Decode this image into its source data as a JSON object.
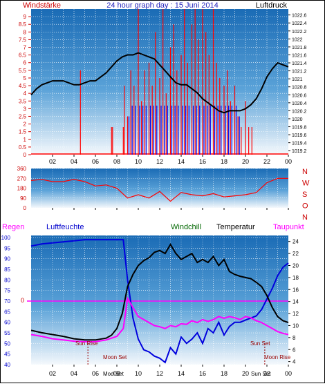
{
  "colors": {
    "panel_top": "#1a6bb5",
    "panel_bottom": "#f4f8fc",
    "grid": "#ffffff",
    "wind_red": "#ff0000",
    "wind_blue": "#0000ee",
    "pressure": "#000000",
    "humidity": "#0000dd",
    "windchill": "#006600",
    "temperature": "#000000",
    "dewpoint": "#ff00ff",
    "zero_line": "#ff00ff",
    "sun_text": "#990000"
  },
  "chart_data": [
    {
      "type": "line",
      "panel": "wind_pressure",
      "title": "24 hour graph day : 15 Juni 2014",
      "left_label": "Windstärke",
      "right_label": "Luftdruck",
      "x_ticks": [
        "02",
        "04",
        "06",
        "08",
        "10",
        "12",
        "14",
        "16",
        "18",
        "20",
        "22",
        "00"
      ],
      "y_left_ticks": [
        "0",
        "0.5",
        "1",
        "1.5",
        "2",
        "2.5",
        "3",
        "3.5",
        "4",
        "4.5",
        "5",
        "5.5",
        "6",
        "6.5",
        "7",
        "7.5",
        "8",
        "8.5",
        "9"
      ],
      "y_right_ticks": [
        "1019.2",
        "1019.4",
        "1019.6",
        "1019.8",
        "1020",
        "1020.2",
        "1020.4",
        "1020.6",
        "1020.8",
        "1021",
        "1021.2",
        "1021.4",
        "1021.6",
        "1021.8",
        "1022",
        "1022.2",
        "1022.4",
        "1022.6"
      ],
      "ylim_left": [
        0,
        9.5
      ],
      "ylim_right": [
        1019.1,
        1022.75
      ],
      "xlim": [
        0,
        24
      ],
      "grid": true,
      "series": [
        {
          "name": "Luftdruck",
          "x": [
            0,
            0.5,
            1,
            1.5,
            2,
            2.5,
            3,
            3.5,
            4,
            4.5,
            5,
            5.5,
            6,
            6.5,
            7,
            7.5,
            8,
            8.5,
            9,
            9.5,
            10,
            10.5,
            11,
            11.5,
            12,
            12.5,
            13,
            13.5,
            14,
            14.5,
            15,
            15.5,
            16,
            16.5,
            17,
            17.5,
            18,
            18.5,
            19,
            19.5,
            20,
            20.5,
            21,
            21.5,
            22,
            22.5,
            23,
            23.5,
            24
          ],
          "values": [
            1020.6,
            1020.75,
            1020.85,
            1020.9,
            1020.95,
            1020.95,
            1020.95,
            1020.9,
            1020.85,
            1020.85,
            1020.9,
            1020.95,
            1020.95,
            1021.05,
            1021.15,
            1021.3,
            1021.45,
            1021.55,
            1021.6,
            1021.6,
            1021.65,
            1021.6,
            1021.55,
            1021.5,
            1021.35,
            1021.2,
            1021.05,
            1020.9,
            1020.85,
            1020.85,
            1020.75,
            1020.65,
            1020.5,
            1020.4,
            1020.3,
            1020.2,
            1020.15,
            1020.2,
            1020.2,
            1020.2,
            1020.25,
            1020.35,
            1020.5,
            1020.75,
            1021.05,
            1021.25,
            1021.4,
            1021.35,
            1021.3
          ]
        },
        {
          "name": "Windstärke",
          "x": [
            4.6,
            4.7,
            7.5,
            7.6,
            8.6,
            8.7,
            9.0,
            9.3,
            9.6,
            10.0,
            10.3,
            10.6,
            11.0,
            11.3,
            11.6,
            12.0,
            12.3,
            12.6,
            13.0,
            13.3,
            13.6,
            14.0,
            14.3,
            14.6,
            15.0,
            15.3,
            15.6,
            16.0,
            16.3,
            16.6,
            17.0,
            17.3,
            17.6,
            18.0,
            18.3,
            18.6,
            19.0,
            19.3,
            19.6,
            20.0,
            20.3,
            20.6
          ],
          "values": [
            5.5,
            0,
            1.8,
            1.8,
            1.8,
            4.5,
            2.5,
            5.5,
            4.5,
            9.5,
            3.5,
            5.5,
            6.0,
            4.5,
            8.0,
            5.0,
            9.5,
            4.0,
            7.0,
            8.5,
            5.5,
            6.5,
            9.5,
            6.0,
            8.5,
            9.5,
            7.5,
            9.5,
            8.0,
            6.5,
            9.5,
            6.0,
            5.0,
            4.5,
            5.5,
            3.5,
            4.5,
            2.5,
            1.8,
            3.5,
            1.8,
            1.8
          ]
        }
      ]
    },
    {
      "type": "line",
      "panel": "wind_direction",
      "x_ticks": [
        "02",
        "04",
        "06",
        "08",
        "10",
        "12",
        "14",
        "16",
        "18",
        "20",
        "22",
        "00"
      ],
      "y_ticks": [
        "0",
        "90",
        "180",
        "270",
        "360"
      ],
      "right_labels": [
        "N",
        "W",
        "S",
        "O",
        "N"
      ],
      "ylim": [
        0,
        360
      ],
      "xlim": [
        0,
        24
      ],
      "grid": true,
      "series": [
        {
          "name": "Windrichtung",
          "x": [
            0,
            1,
            2,
            3,
            4,
            5,
            6,
            7,
            8,
            9,
            10,
            11,
            12,
            13,
            14,
            15,
            16,
            17,
            18,
            19,
            20,
            21,
            22,
            23,
            24
          ],
          "values": [
            250,
            260,
            240,
            240,
            260,
            240,
            200,
            210,
            180,
            90,
            120,
            90,
            150,
            60,
            140,
            120,
            110,
            130,
            100,
            110,
            120,
            140,
            230,
            270,
            270
          ]
        }
      ]
    },
    {
      "type": "line",
      "panel": "temperature_humidity",
      "legend": [
        "Regen",
        "Luftfeuchte",
        "Windchill",
        "Temperatur",
        "Taupunkt"
      ],
      "x_ticks": [
        "02",
        "04",
        "06",
        "08",
        "10",
        "12",
        "14",
        "16",
        "18",
        "20",
        "22",
        "00"
      ],
      "y_left_ticks": [
        "40",
        "45",
        "50",
        "55",
        "60",
        "65",
        "70",
        "75",
        "80",
        "85",
        "90",
        "95",
        "100"
      ],
      "y_right_ticks": [
        "4",
        "6",
        "8",
        "10",
        "12",
        "14",
        "16",
        "18",
        "20",
        "22",
        "24"
      ],
      "rain_label": "0",
      "ylim_left": [
        40,
        101
      ],
      "ylim_right": [
        3.5,
        25
      ],
      "xlim": [
        0,
        24
      ],
      "grid": true,
      "annotations": [
        "Sun Rise",
        "Moon Set",
        "Sun Set",
        "Moon Rise",
        "Mod Set",
        "Sun Set"
      ],
      "series": [
        {
          "name": "Luftfeuchte",
          "x": [
            0,
            1,
            2,
            3,
            4,
            5,
            6,
            7,
            8,
            8.6,
            9,
            9.5,
            10,
            10.5,
            11,
            11.5,
            12,
            12.5,
            13,
            13.5,
            14,
            14.5,
            15,
            15.5,
            16,
            16.5,
            17,
            17.5,
            18,
            18.5,
            19,
            19.5,
            20,
            20.5,
            21,
            21.5,
            22,
            22.5,
            23,
            23.5,
            24
          ],
          "values": [
            96,
            97,
            97.5,
            98,
            98.5,
            99,
            99,
            99,
            99,
            99,
            80,
            62,
            52,
            47,
            46,
            44,
            43,
            41,
            48,
            45,
            53,
            50,
            52,
            55,
            50,
            57,
            55,
            60,
            54,
            58,
            60,
            60,
            61,
            62,
            63,
            66,
            71,
            76,
            82,
            86,
            88
          ]
        },
        {
          "name": "Temperatur",
          "x": [
            0,
            1,
            2,
            3,
            4,
            5,
            6,
            7,
            7.5,
            8,
            8.5,
            9,
            9.5,
            10,
            10.5,
            11,
            11.5,
            12,
            12.5,
            13,
            13.5,
            14,
            14.5,
            15,
            15.5,
            16,
            16.5,
            17,
            17.5,
            18,
            18.5,
            19,
            19.5,
            20,
            20.5,
            21,
            21.5,
            22,
            22.5,
            23,
            23.5,
            24
          ],
          "values": [
            9.2,
            8.8,
            8.5,
            8.2,
            7.8,
            7.6,
            7.6,
            7.9,
            8.4,
            9.5,
            12.0,
            16.5,
            18.5,
            20.0,
            20.8,
            21.3,
            22.2,
            22.5,
            22.0,
            23.5,
            22.0,
            21.0,
            21.5,
            22.0,
            20.5,
            21.0,
            20.5,
            21.5,
            20.0,
            21.0,
            19.0,
            18.5,
            18.2,
            18.0,
            17.8,
            17.2,
            16.5,
            15.0,
            13.0,
            11.5,
            10.8,
            10.5
          ]
        },
        {
          "name": "Taupunkt",
          "x": [
            0,
            1,
            2,
            3,
            4,
            5,
            6,
            7,
            8,
            8.6,
            9,
            9.5,
            10,
            10.5,
            11,
            11.5,
            12,
            12.5,
            13,
            13.5,
            14,
            14.5,
            15,
            15.5,
            16,
            16.5,
            17,
            17.5,
            18,
            18.5,
            19,
            19.5,
            20,
            20.5,
            21,
            21.5,
            22,
            22.5,
            23,
            23.5,
            24
          ],
          "values": [
            8.5,
            8.2,
            7.8,
            7.6,
            7.4,
            7.3,
            7.3,
            7.6,
            8.2,
            9.5,
            14.5,
            13.0,
            11.5,
            11.0,
            10.5,
            10.0,
            9.8,
            9.5,
            10.0,
            9.8,
            10.3,
            10.2,
            10.8,
            10.5,
            11.0,
            10.7,
            11.0,
            11.5,
            11.2,
            11.5,
            11.3,
            11.0,
            11.5,
            11.3,
            10.8,
            10.5,
            10.0,
            9.5,
            9.0,
            8.7,
            8.5
          ]
        }
      ]
    }
  ]
}
